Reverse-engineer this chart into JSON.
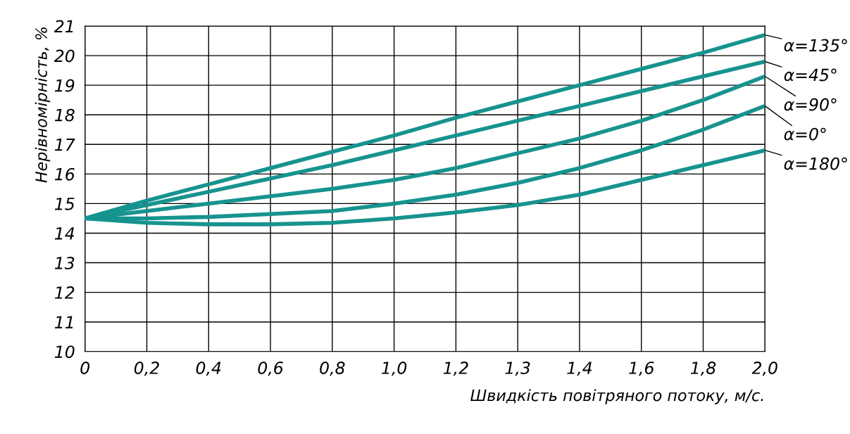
{
  "chart_data": {
    "type": "line",
    "xlabel": "Швидкість повітряного потоку, м/с.",
    "ylabel": "Нерівномірність, %",
    "categories": [
      "0",
      "0,2",
      "0,4",
      "0,6",
      "0,8",
      "1,0",
      "1,2",
      "1,3",
      "1,4",
      "1,6",
      "1,8",
      "2,0"
    ],
    "ylim": [
      10,
      21
    ],
    "yticks": [
      10,
      11,
      12,
      13,
      14,
      15,
      16,
      17,
      18,
      19,
      20,
      21
    ],
    "grid": true,
    "marker": "none",
    "line_style": "solid",
    "series": [
      {
        "name": "α=135°",
        "color": "#17938f",
        "values": [
          14.5,
          15.1,
          15.65,
          16.2,
          16.75,
          17.3,
          17.9,
          18.45,
          19.0,
          19.55,
          20.1,
          20.7
        ]
      },
      {
        "name": "α=45°",
        "color": "#17938f",
        "values": [
          14.5,
          14.95,
          15.4,
          15.85,
          16.3,
          16.8,
          17.3,
          17.8,
          18.3,
          18.8,
          19.3,
          19.8
        ]
      },
      {
        "name": "α=90°",
        "color": "#17938f",
        "values": [
          14.5,
          14.75,
          15.0,
          15.25,
          15.5,
          15.8,
          16.2,
          16.7,
          17.2,
          17.8,
          18.5,
          19.3
        ]
      },
      {
        "name": "α=0°",
        "color": "#17938f",
        "values": [
          14.5,
          14.5,
          14.55,
          14.65,
          14.75,
          15.0,
          15.3,
          15.7,
          16.2,
          16.8,
          17.5,
          18.3
        ]
      },
      {
        "name": "α=180°",
        "color": "#17938f",
        "values": [
          14.5,
          14.35,
          14.3,
          14.3,
          14.35,
          14.5,
          14.7,
          14.95,
          15.3,
          15.8,
          16.3,
          16.8
        ]
      }
    ]
  }
}
